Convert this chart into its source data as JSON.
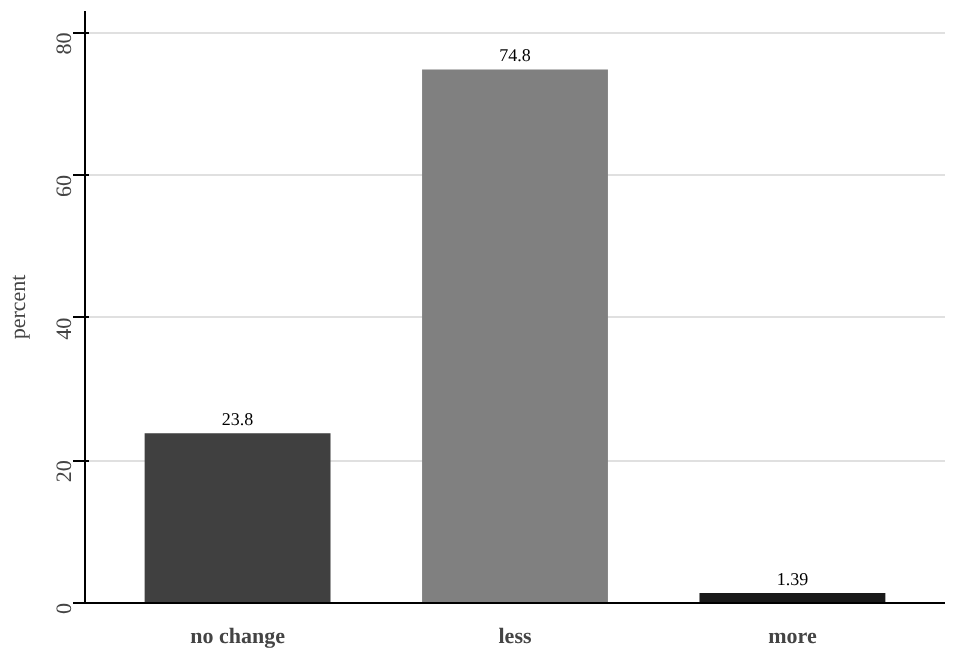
{
  "chart_data": {
    "type": "bar",
    "ylabel": "percent",
    "categories": [
      "no change",
      "less",
      "more"
    ],
    "values": [
      23.8,
      74.8,
      1.39
    ],
    "colors": [
      "#404040",
      "#808080",
      "#1a1a1a"
    ],
    "ylim": [
      0,
      83
    ],
    "yticks": [
      0,
      20,
      40,
      60,
      80
    ],
    "grid": "y",
    "data_labels": true
  }
}
